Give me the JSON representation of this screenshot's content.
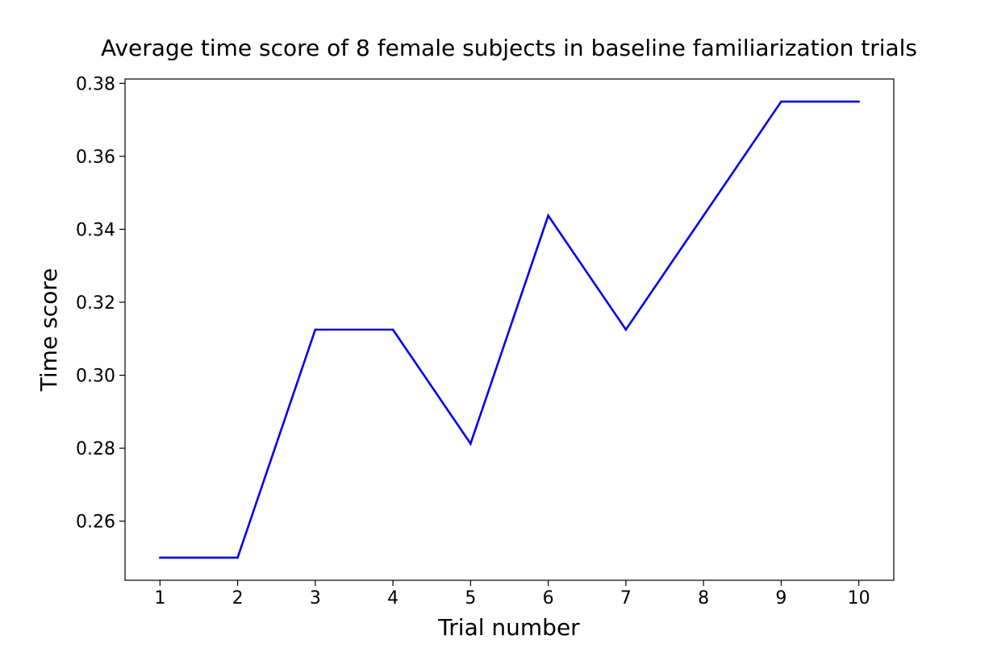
{
  "chart_data": {
    "type": "line",
    "title": "Average time score of 8 female subjects in baseline familiarization trials",
    "xlabel": "Trial number",
    "ylabel": "Time score",
    "x": [
      1,
      2,
      3,
      4,
      5,
      6,
      7,
      8,
      9,
      10
    ],
    "series": [
      {
        "color": "#0000ee",
        "values": [
          0.25,
          0.25,
          0.3125,
          0.3125,
          0.28125,
          0.34375,
          0.3125,
          0.34375,
          0.375,
          0.375
        ]
      }
    ],
    "xlim": [
      0.55,
      10.45
    ],
    "ylim": [
      0.2438,
      0.3812
    ],
    "xticks": [
      1,
      2,
      3,
      4,
      5,
      6,
      7,
      8,
      9,
      10
    ],
    "yticks": [
      "0.26",
      "0.28",
      "0.30",
      "0.32",
      "0.34",
      "0.36",
      "0.38"
    ],
    "grid": false,
    "legend": "none"
  }
}
